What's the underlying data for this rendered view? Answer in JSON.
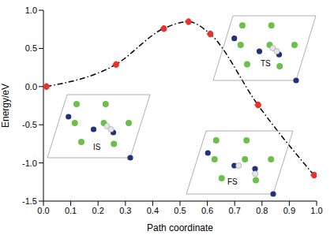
{
  "chart_data": {
    "type": "line",
    "x_label": "Path coordinate",
    "y_label": "Energy/eV",
    "x": [
      0.01,
      0.265,
      0.44,
      0.53,
      0.61,
      0.785,
      0.99
    ],
    "series": [
      {
        "name": "Energy",
        "color": "#e8322b",
        "marker": "circle",
        "line_style": "dashdot",
        "values": [
          0.0,
          0.29,
          0.76,
          0.85,
          0.69,
          -0.24,
          -1.16
        ]
      }
    ],
    "xlim": [
      0,
      1
    ],
    "xticks": [
      {
        "value": 0,
        "label": "0.0"
      },
      0.1,
      0.2,
      0.3,
      0.4,
      0.5,
      0.6,
      0.7,
      0.8,
      0.9,
      {
        "value": 1,
        "label": "1.0"
      }
    ],
    "ylim": [
      -1.5,
      1
    ],
    "yticks": [
      -1.5,
      {
        "value": -1,
        "label": "-1.0"
      },
      -0.5,
      {
        "value": 0,
        "label": "0.0"
      },
      0.5,
      {
        "value": 1,
        "label": "1.0"
      }
    ],
    "annotations": [
      "IS",
      "TS",
      "FS"
    ]
  }
}
